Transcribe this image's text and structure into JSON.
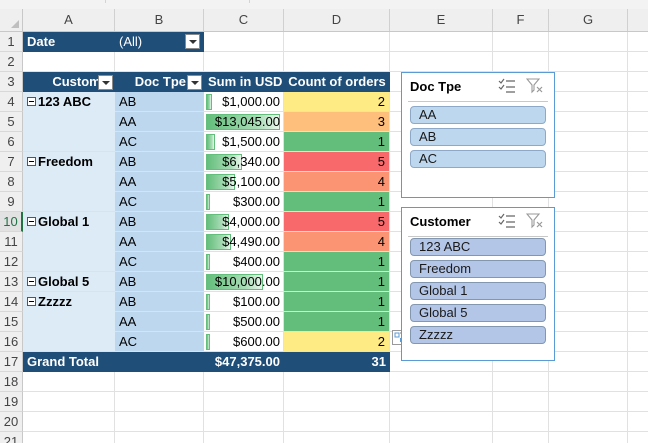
{
  "columns": [
    "A",
    "B",
    "C",
    "D",
    "E",
    "F",
    "G"
  ],
  "rows": [
    "1",
    "2",
    "3",
    "4",
    "5",
    "6",
    "7",
    "8",
    "9",
    "10",
    "11",
    "12",
    "13",
    "14",
    "15",
    "16",
    "17",
    "18",
    "19",
    "20",
    "21"
  ],
  "active_row": "10",
  "filter": {
    "label": "Date",
    "value": "(All)"
  },
  "pivot": {
    "headers": {
      "customer": "Customer",
      "doc_type": "Doc Tpe",
      "sum": "Sum in USD",
      "count": "Count of orders"
    },
    "data_rows": [
      {
        "customer": "123 ABC",
        "doc": "AB",
        "sum": "$1,000.00",
        "sum_value": 1000,
        "count": "2",
        "count_color": "#ffeb84"
      },
      {
        "customer": "",
        "doc": "AA",
        "sum": "$13,045.00",
        "sum_value": 13045,
        "count": "3",
        "count_color": "#fdbf7b"
      },
      {
        "customer": "",
        "doc": "AC",
        "sum": "$1,500.00",
        "sum_value": 1500,
        "count": "1",
        "count_color": "#63be7b"
      },
      {
        "customer": "Freedom",
        "doc": "AB",
        "sum": "$6,340.00",
        "sum_value": 6340,
        "count": "5",
        "count_color": "#f8696b"
      },
      {
        "customer": "",
        "doc": "AA",
        "sum": "$5,100.00",
        "sum_value": 5100,
        "count": "4",
        "count_color": "#fa9473"
      },
      {
        "customer": "",
        "doc": "AC",
        "sum": "$300.00",
        "sum_value": 300,
        "count": "1",
        "count_color": "#63be7b"
      },
      {
        "customer": "Global 1",
        "doc": "AB",
        "sum": "$4,000.00",
        "sum_value": 4000,
        "count": "5",
        "count_color": "#f8696b"
      },
      {
        "customer": "",
        "doc": "AA",
        "sum": "$4,490.00",
        "sum_value": 4490,
        "count": "4",
        "count_color": "#fa9473"
      },
      {
        "customer": "",
        "doc": "AC",
        "sum": "$400.00",
        "sum_value": 400,
        "count": "1",
        "count_color": "#63be7b"
      },
      {
        "customer": "Global 5",
        "doc": "AB",
        "sum": "$10,000.00",
        "sum_value": 10000,
        "count": "1",
        "count_color": "#63be7b"
      },
      {
        "customer": "Zzzzz",
        "doc": "AB",
        "sum": "$100.00",
        "sum_value": 100,
        "count": "1",
        "count_color": "#63be7b"
      },
      {
        "customer": "",
        "doc": "AA",
        "sum": "$500.00",
        "sum_value": 500,
        "count": "1",
        "count_color": "#63be7b"
      },
      {
        "customer": "",
        "doc": "AC",
        "sum": "$600.00",
        "sum_value": 600,
        "count": "2",
        "count_color": "#ffeb84"
      }
    ],
    "grand_total": {
      "label": "Grand Total",
      "sum": "$47,375.00",
      "count": "31"
    }
  },
  "slicers": {
    "doc_type": {
      "title": "Doc Tpe",
      "items": [
        "AA",
        "AB",
        "AC"
      ]
    },
    "customer": {
      "title": "Customer",
      "items": [
        "123 ABC",
        "Freedom",
        "Global 1",
        "Global 5",
        "Zzzzz"
      ]
    }
  },
  "colors": {
    "header_navy": "#1f4e78",
    "row_label_blue": "#bdd7ee",
    "data_bar_green": "#63be7b",
    "slicer_border": "#5b9bd5"
  }
}
